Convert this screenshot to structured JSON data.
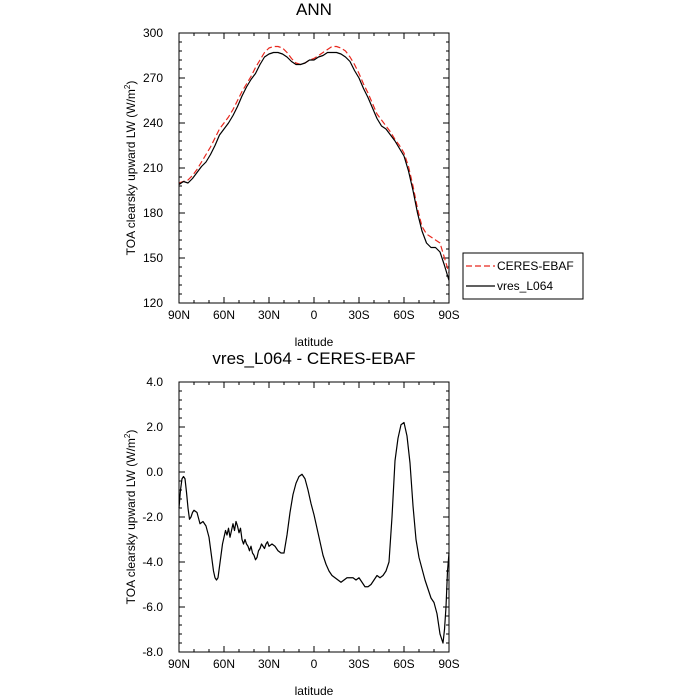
{
  "chart_data": [
    {
      "type": "line",
      "title": "ANN",
      "xlabel": "latitude",
      "ylabel": "TOA clearsky upward LW (W/m",
      "ylabel_sup": "2",
      "ylabel_close": ")",
      "xlim": [
        90,
        -90
      ],
      "ylim": [
        120,
        300
      ],
      "xticks": [
        90,
        60,
        30,
        0,
        -30,
        -60,
        -90
      ],
      "xtick_labels": [
        "90N",
        "60N",
        "30N",
        "0",
        "30S",
        "60S",
        "90S"
      ],
      "yticks": [
        120,
        150,
        180,
        210,
        240,
        270,
        300
      ],
      "ytick_labels": [
        "120",
        "150",
        "180",
        "210",
        "240",
        "270",
        "300"
      ],
      "legend": "right",
      "series": [
        {
          "name": "CERES-EBAF",
          "color": "#e8281e",
          "dash": true,
          "x": [
            90,
            87,
            84,
            81,
            78,
            75,
            72,
            69,
            66,
            63,
            60,
            57,
            54,
            51,
            48,
            45,
            42,
            39,
            36,
            33,
            30,
            27,
            24,
            21,
            18,
            15,
            12,
            9,
            6,
            3,
            0,
            -3,
            -6,
            -9,
            -12,
            -15,
            -18,
            -21,
            -24,
            -27,
            -30,
            -33,
            -36,
            -39,
            -42,
            -45,
            -48,
            -51,
            -54,
            -57,
            -60,
            -63,
            -66,
            -69,
            -72,
            -75,
            -78,
            -81,
            -84,
            -87,
            -90
          ],
          "y": [
            200,
            201,
            202,
            205,
            209,
            214,
            219,
            224,
            230,
            236,
            240,
            244,
            249,
            255,
            261,
            266,
            271,
            277,
            282,
            287,
            290,
            291,
            291,
            290,
            287,
            283,
            280,
            279,
            280,
            282,
            283,
            285,
            287,
            289,
            291,
            291,
            290,
            288,
            284,
            279,
            273,
            266,
            260,
            253,
            246,
            242,
            238,
            234,
            229,
            225,
            220,
            211,
            198,
            183,
            171,
            166,
            164,
            162,
            160,
            150,
            140
          ]
        },
        {
          "name": "vres_L064",
          "color": "#000000",
          "dash": false,
          "x": [
            90,
            87,
            84,
            81,
            78,
            75,
            72,
            69,
            66,
            63,
            60,
            57,
            54,
            51,
            48,
            45,
            42,
            39,
            36,
            33,
            30,
            27,
            24,
            21,
            18,
            15,
            12,
            9,
            6,
            3,
            0,
            -3,
            -6,
            -9,
            -12,
            -15,
            -18,
            -21,
            -24,
            -27,
            -30,
            -33,
            -36,
            -39,
            -42,
            -45,
            -48,
            -51,
            -54,
            -57,
            -60,
            -63,
            -66,
            -69,
            -72,
            -75,
            -78,
            -81,
            -84,
            -87,
            -90
          ],
          "y": [
            199,
            201,
            200,
            203,
            207,
            211,
            214,
            219,
            225,
            232,
            236,
            240,
            245,
            251,
            258,
            264,
            269,
            273,
            279,
            284,
            286,
            287,
            287,
            286,
            284,
            281,
            279,
            279,
            280,
            282,
            282,
            284,
            285,
            287,
            287,
            287,
            286,
            284,
            281,
            275,
            270,
            263,
            257,
            250,
            243,
            238,
            236,
            232,
            228,
            223,
            218,
            208,
            195,
            180,
            168,
            160,
            157,
            157,
            154,
            145,
            135
          ]
        }
      ]
    },
    {
      "type": "line",
      "title": "vres_L064 - CERES-EBAF",
      "xlabel": "latitude",
      "ylabel": "TOA clearsky upward LW (W/m",
      "ylabel_sup": "2",
      "ylabel_close": ")",
      "xlim": [
        90,
        -90
      ],
      "ylim": [
        -8.0,
        4.0
      ],
      "xticks": [
        90,
        60,
        30,
        0,
        -30,
        -60,
        -90
      ],
      "xtick_labels": [
        "90N",
        "60N",
        "30N",
        "0",
        "30S",
        "60S",
        "90S"
      ],
      "yticks": [
        -8.0,
        -6.0,
        -4.0,
        -2.0,
        0.0,
        2.0,
        4.0
      ],
      "ytick_labels": [
        "-8.0",
        "-6.0",
        "-4.0",
        "-2.0",
        "0.0",
        "2.0",
        "4.0"
      ],
      "series": [
        {
          "color": "#000000",
          "dash": false,
          "x": [
            90,
            89,
            88,
            87,
            86,
            85,
            84,
            83,
            82,
            81,
            80,
            78,
            76,
            74,
            72,
            70,
            69,
            68,
            67,
            66,
            65,
            64,
            63,
            62,
            61,
            60,
            59,
            58,
            57,
            56,
            55,
            54,
            53,
            52,
            51,
            50,
            49,
            48,
            47,
            46,
            45,
            44,
            43,
            42,
            41,
            40,
            39,
            38,
            37,
            36,
            35,
            34,
            33,
            32,
            31,
            30,
            28,
            26,
            24,
            22,
            20,
            18,
            16,
            14,
            12,
            10,
            8,
            6,
            4,
            2,
            0,
            -2,
            -4,
            -6,
            -8,
            -10,
            -12,
            -14,
            -16,
            -18,
            -20,
            -22,
            -24,
            -26,
            -28,
            -30,
            -32,
            -34,
            -36,
            -38,
            -40,
            -42,
            -44,
            -46,
            -48,
            -50,
            -52,
            -54,
            -56,
            -58,
            -60,
            -62,
            -64,
            -66,
            -68,
            -70,
            -72,
            -74,
            -76,
            -78,
            -80,
            -82,
            -84,
            -86,
            -87,
            -88,
            -89,
            -90
          ],
          "y": [
            -1.6,
            -0.8,
            -0.3,
            -0.2,
            -0.3,
            -0.9,
            -1.6,
            -2.1,
            -2.0,
            -1.8,
            -1.7,
            -1.8,
            -2.3,
            -2.2,
            -2.4,
            -2.9,
            -3.4,
            -3.9,
            -4.4,
            -4.7,
            -4.8,
            -4.7,
            -4.2,
            -3.7,
            -3.2,
            -2.9,
            -2.6,
            -2.8,
            -2.5,
            -2.9,
            -2.6,
            -2.3,
            -2.6,
            -2.2,
            -2.4,
            -2.7,
            -2.5,
            -3.0,
            -3.2,
            -3.0,
            -3.2,
            -3.3,
            -3.5,
            -3.3,
            -3.6,
            -3.7,
            -3.9,
            -3.8,
            -3.5,
            -3.4,
            -3.2,
            -3.3,
            -3.4,
            -3.2,
            -3.1,
            -3.3,
            -3.2,
            -3.3,
            -3.5,
            -3.6,
            -3.6,
            -2.8,
            -1.8,
            -1.0,
            -0.5,
            -0.2,
            -0.1,
            -0.3,
            -0.8,
            -1.4,
            -1.9,
            -2.5,
            -3.1,
            -3.7,
            -4.1,
            -4.4,
            -4.6,
            -4.7,
            -4.8,
            -4.9,
            -4.8,
            -4.7,
            -4.7,
            -4.7,
            -4.8,
            -4.7,
            -4.9,
            -5.1,
            -5.1,
            -5.0,
            -4.8,
            -4.6,
            -4.7,
            -4.6,
            -4.4,
            -4.0,
            -2.0,
            0.5,
            1.5,
            2.1,
            2.2,
            1.6,
            0.4,
            -1.5,
            -3.0,
            -3.8,
            -4.3,
            -4.8,
            -5.2,
            -5.6,
            -5.8,
            -6.3,
            -7.2,
            -7.6,
            -7.0,
            -6.0,
            -4.4,
            -3.6
          ]
        }
      ]
    }
  ]
}
